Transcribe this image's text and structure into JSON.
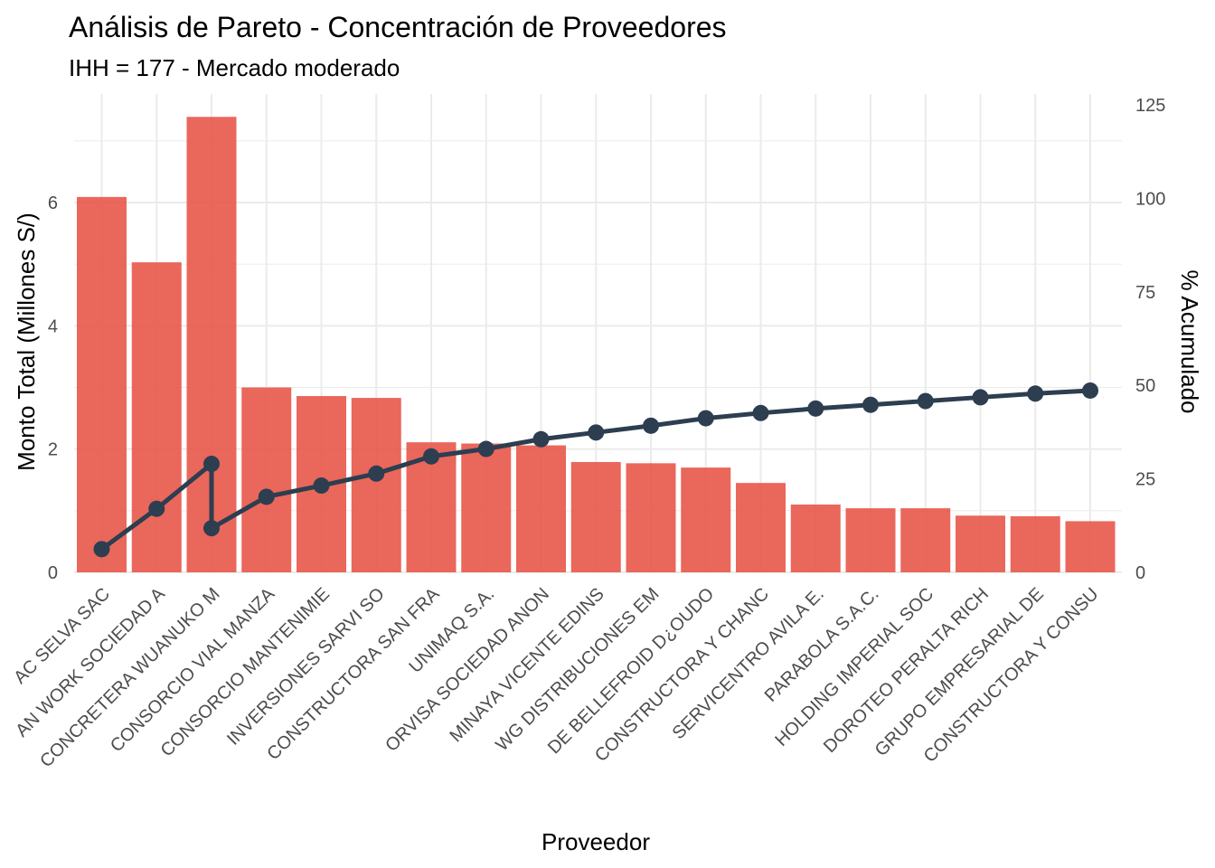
{
  "chart_data": {
    "type": "bar",
    "title": "Análisis de Pareto - Concentración de Proveedores",
    "subtitle": "IHH = 177 - Mercado moderado",
    "xlabel": "Proveedor",
    "ylabel": "Monto Total (Millones S/)",
    "y2label": "% Acumulado",
    "ylim": [
      0,
      7.6
    ],
    "y_ticks": [
      0,
      2,
      4,
      6
    ],
    "y2lim": [
      0,
      125
    ],
    "y2_ticks": [
      0,
      25,
      50,
      75,
      100,
      125
    ],
    "grid": true,
    "legend": "none",
    "categories": [
      "AC SELVA SAC",
      "AN WORK SOCIEDAD A",
      "CONCRETERA WUANUKO M",
      "CONSORCIO VIAL MANZA",
      "CONSORCIO MANTENIMIE",
      "INVERSIONES SARVI SO",
      "CONSTRUCTORA SAN FRA",
      "UNIMAQ S.A.",
      "ORVISA SOCIEDAD ANON",
      "MINAYA VICENTE EDINS",
      "WG DISTRIBUCIONES EM",
      "DE BELLEFROID D¿OUDO",
      "CONSTRUCTORA Y CHANC",
      "SERVICENTRO AVILA E.",
      "PARABOLA S.A.C.",
      "HOLDING IMPERIAL SOC",
      "DOROTEO PERALTA RICH",
      "GRUPO EMPRESARIAL DE",
      "CONSTRUCTORA Y CONSU"
    ],
    "series": [
      {
        "type": "bar",
        "axis": "left",
        "values": [
          6.09,
          5.03,
          7.39,
          3.0,
          2.86,
          2.83,
          2.11,
          2.09,
          2.06,
          1.79,
          1.77,
          1.7,
          1.45,
          1.1,
          1.04,
          1.04,
          0.92,
          0.91,
          0.83
        ]
      },
      {
        "type": "line",
        "axis": "right",
        "values": [
          6.2,
          17.0,
          29.0,
          20.2,
          23.2,
          26.4,
          31.0,
          33.0,
          35.6,
          37.4,
          39.2,
          41.2,
          42.6,
          43.8,
          44.8,
          45.8,
          46.8,
          47.8,
          48.6
        ],
        "extra_point": {
          "category_index": 2,
          "value": 11.8
        }
      }
    ],
    "colors": {
      "bar": "#E8574A",
      "line": "#2C3E50",
      "grid": "#EBEBEB"
    }
  }
}
